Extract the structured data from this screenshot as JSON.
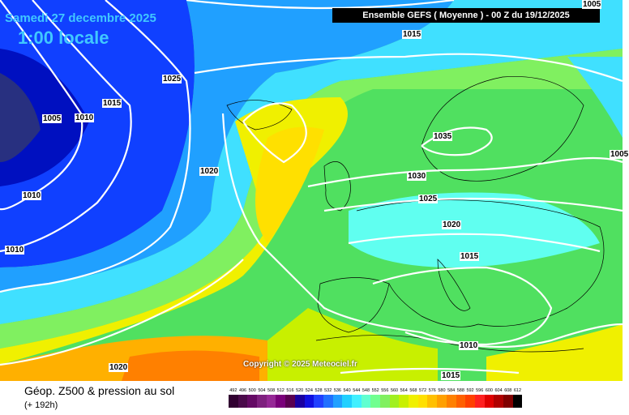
{
  "header": {
    "date": "Samedi 27 decembre 2025",
    "time": "1:00 locale",
    "run": "Ensemble GEFS  ( Moyenne )  -  00 Z du 19/12/2025"
  },
  "isobars": [
    "1005",
    "1015",
    "1025",
    "1015",
    "1005",
    "1010",
    "1020",
    "1010",
    "1010",
    "1035",
    "1030",
    "1025",
    "1020",
    "1015",
    "1010",
    "1015",
    "1020",
    "1005"
  ],
  "copyright": "Copyright © 2025 Meteociel.fr",
  "legend": {
    "title": "Géop. Z500 & pression au sol",
    "subtitle": "(+ 192h)",
    "values": [
      "492",
      "496",
      "500",
      "504",
      "508",
      "512",
      "516",
      "520",
      "524",
      "528",
      "532",
      "536",
      "540",
      "544",
      "548",
      "552",
      "556",
      "560",
      "564",
      "568",
      "572",
      "576",
      "580",
      "584",
      "588",
      "592",
      "596",
      "600",
      "604",
      "608",
      "612"
    ],
    "colors": [
      "#300030",
      "#4a0a4a",
      "#640a64",
      "#7e207e",
      "#962896",
      "#7a007a",
      "#5a0050",
      "#1a00a0",
      "#1010e0",
      "#2040ff",
      "#2070ff",
      "#20a0ff",
      "#20d0ff",
      "#40f0ff",
      "#60ffd0",
      "#70ff90",
      "#80f060",
      "#a0f020",
      "#c8f000",
      "#f0f000",
      "#ffe000",
      "#ffc000",
      "#ffa000",
      "#ff8000",
      "#ff6000",
      "#ff4000",
      "#ff2020",
      "#e00000",
      "#b00000",
      "#800000",
      "#000000"
    ]
  }
}
